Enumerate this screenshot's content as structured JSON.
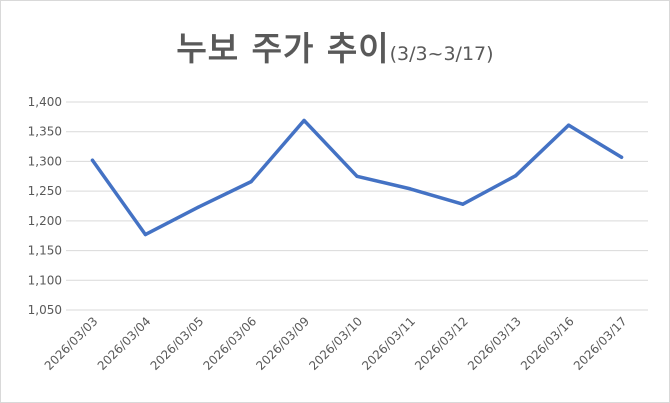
{
  "chart_data": {
    "type": "line",
    "title": "누보 주가 추이",
    "subtitle": "(3/3~3/17)",
    "categories": [
      "2026/03/03",
      "2026/03/04",
      "2026/03/05",
      "2026/03/06",
      "2026/03/09",
      "2026/03/10",
      "2026/03/11",
      "2026/03/12",
      "2026/03/13",
      "2026/03/16",
      "2026/03/17"
    ],
    "series": [
      {
        "values": [
          1302,
          1177,
          1223,
          1266,
          1369,
          1275,
          1254,
          1228,
          1276,
          1361,
          1307
        ]
      }
    ],
    "yticks": [
      "1,050",
      "1,100",
      "1,150",
      "1,200",
      "1,250",
      "1,300",
      "1,350",
      "1,400"
    ],
    "ylim": [
      1050,
      1400
    ],
    "ystep": 50,
    "grid": true,
    "legend": "none",
    "line_color": "#4472c4",
    "grid_color": "#d9d9d9",
    "text_color": "#595959"
  }
}
